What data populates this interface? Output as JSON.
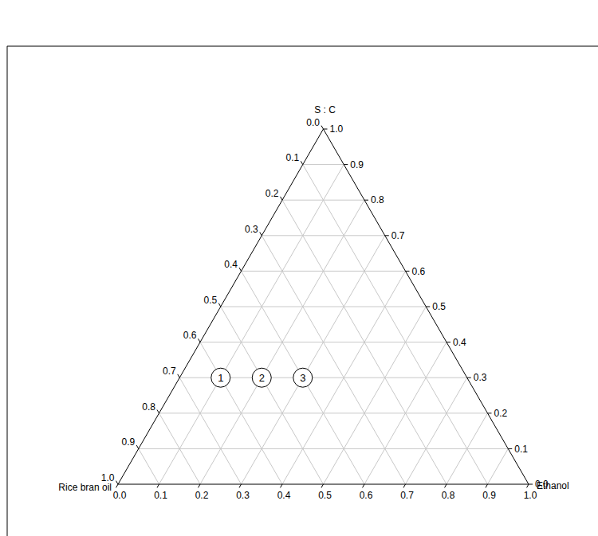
{
  "chart_data": {
    "type": "ternary",
    "grid": true,
    "marker": "circle",
    "axes": [
      {
        "name": "Rice bran oil",
        "lim": [
          0,
          1
        ],
        "ticks": [
          {
            "value": 0,
            "label": "0.0"
          },
          {
            "value": 0.1,
            "label": "0.1"
          },
          {
            "value": 0.2,
            "label": "0.2"
          },
          {
            "value": 0.3,
            "label": "0.3"
          },
          {
            "value": 0.4,
            "label": "0.4"
          },
          {
            "value": 0.5,
            "label": "0.5"
          },
          {
            "value": 0.6,
            "label": "0.6"
          },
          {
            "value": 0.7,
            "label": "0.7"
          },
          {
            "value": 0.8,
            "label": "0.8"
          },
          {
            "value": 0.9,
            "label": "0.9"
          },
          {
            "value": 1,
            "label": "1.0"
          }
        ]
      },
      {
        "name": "Ethanol",
        "lim": [
          0,
          1
        ],
        "ticks": [
          {
            "value": 0,
            "label": "0.0"
          },
          {
            "value": 0.1,
            "label": "0.1"
          },
          {
            "value": 0.2,
            "label": "0.2"
          },
          {
            "value": 0.3,
            "label": "0.3"
          },
          {
            "value": 0.4,
            "label": "0.4"
          },
          {
            "value": 0.5,
            "label": "0.5"
          },
          {
            "value": 0.6,
            "label": "0.6"
          },
          {
            "value": 0.7,
            "label": "0.7"
          },
          {
            "value": 0.8,
            "label": "0.8"
          },
          {
            "value": 0.9,
            "label": "0.9"
          },
          {
            "value": 1,
            "label": "1.0"
          }
        ]
      },
      {
        "name": "S : C",
        "lim": [
          0,
          1
        ],
        "ticks": [
          {
            "value": 0,
            "label": "0.0"
          },
          {
            "value": 0.1,
            "label": "0.1"
          },
          {
            "value": 0.2,
            "label": "0.2"
          },
          {
            "value": 0.3,
            "label": "0.3"
          },
          {
            "value": 0.4,
            "label": "0.4"
          },
          {
            "value": 0.5,
            "label": "0.5"
          },
          {
            "value": 0.6,
            "label": "0.6"
          },
          {
            "value": 0.7,
            "label": "0.7"
          },
          {
            "value": 0.8,
            "label": "0.8"
          },
          {
            "value": 0.9,
            "label": "0.9"
          },
          {
            "value": 1,
            "label": "1.0"
          }
        ]
      }
    ],
    "points": [
      {
        "label": "1",
        "values": [
          0.6,
          0.1,
          0.3
        ]
      },
      {
        "label": "2",
        "values": [
          0.5,
          0.2,
          0.3
        ]
      },
      {
        "label": "3",
        "values": [
          0.4,
          0.3,
          0.3
        ]
      }
    ]
  }
}
